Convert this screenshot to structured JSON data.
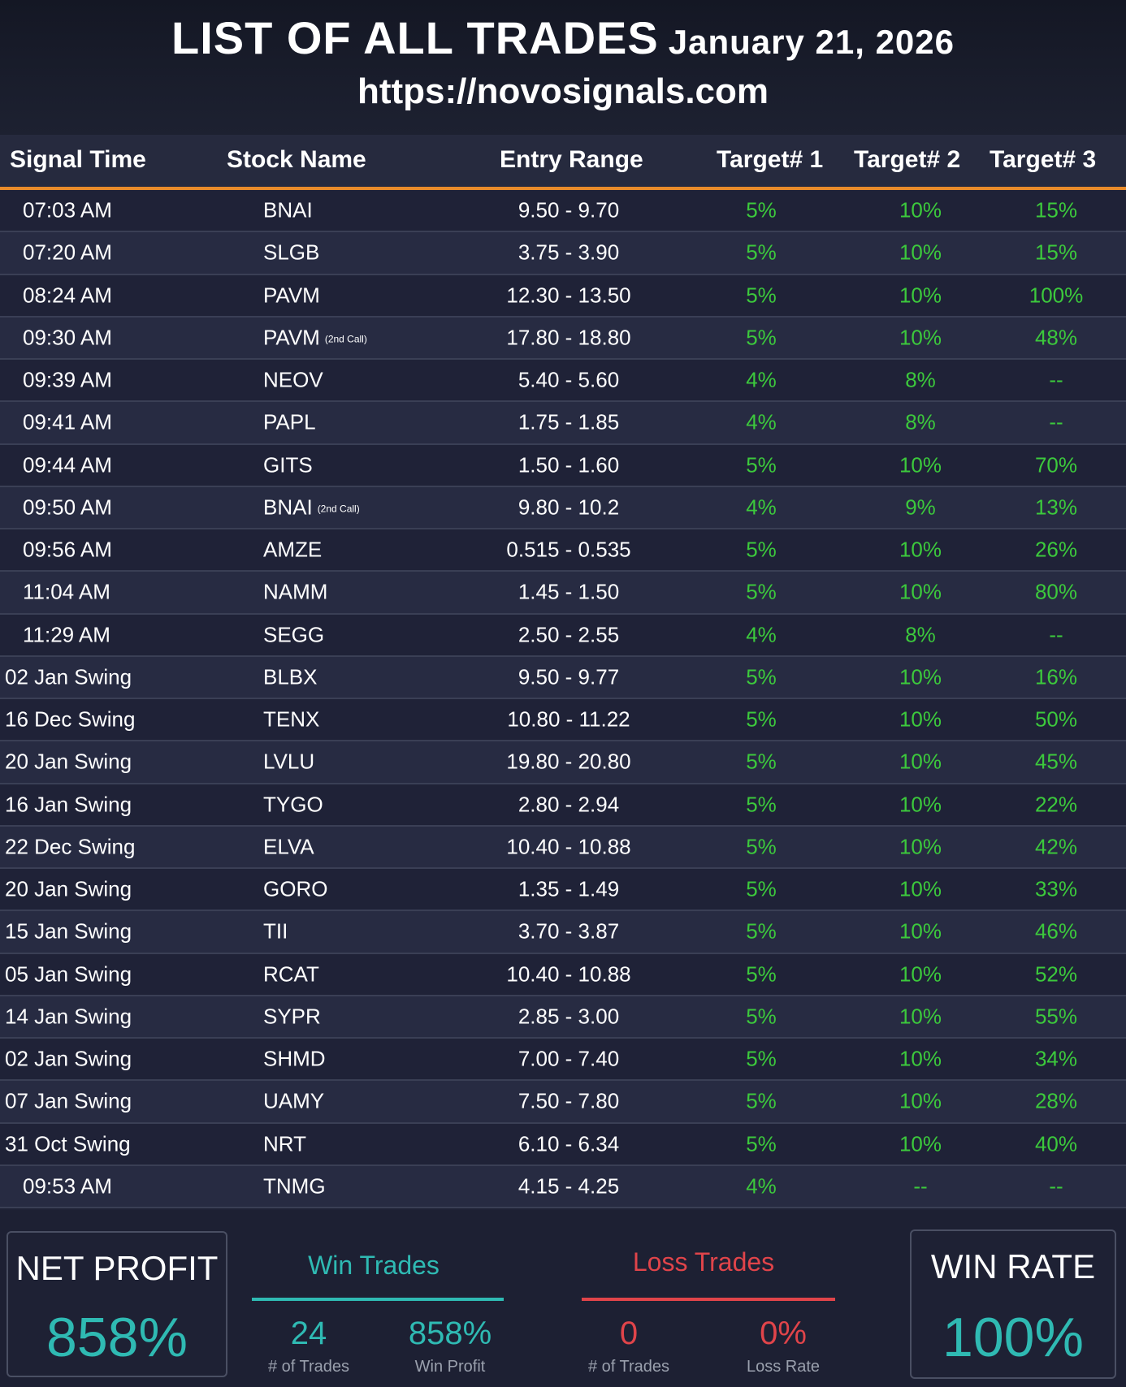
{
  "header": {
    "title": "LIST OF ALL TRADES",
    "date": "January 21, 2026",
    "url": "https://novosignals.com"
  },
  "columns": [
    "Signal Time",
    "Stock Name",
    "Entry Range",
    "Target# 1",
    "Target# 2",
    "Target# 3"
  ],
  "rows": [
    {
      "time": "07:03 AM",
      "name": "BNAI",
      "note": "",
      "entry": "9.50 - 9.70",
      "t1": "5%",
      "t2": "10%",
      "t3": "15%"
    },
    {
      "time": "07:20 AM",
      "name": "SLGB",
      "note": "",
      "entry": "3.75 - 3.90",
      "t1": "5%",
      "t2": "10%",
      "t3": "15%"
    },
    {
      "time": "08:24 AM",
      "name": "PAVM",
      "note": "",
      "entry": "12.30 - 13.50",
      "t1": "5%",
      "t2": "10%",
      "t3": "100%"
    },
    {
      "time": "09:30 AM",
      "name": "PAVM",
      "note": "(2nd Call)",
      "entry": "17.80 - 18.80",
      "t1": "5%",
      "t2": "10%",
      "t3": "48%"
    },
    {
      "time": "09:39 AM",
      "name": "NEOV",
      "note": "",
      "entry": "5.40 - 5.60",
      "t1": "4%",
      "t2": "8%",
      "t3": "--"
    },
    {
      "time": "09:41 AM",
      "name": "PAPL",
      "note": "",
      "entry": "1.75 - 1.85",
      "t1": "4%",
      "t2": "8%",
      "t3": "--"
    },
    {
      "time": "09:44 AM",
      "name": "GITS",
      "note": "",
      "entry": "1.50 - 1.60",
      "t1": "5%",
      "t2": "10%",
      "t3": "70%"
    },
    {
      "time": "09:50 AM",
      "name": "BNAI",
      "note": "(2nd Call)",
      "entry": "9.80 - 10.2",
      "t1": "4%",
      "t2": "9%",
      "t3": "13%"
    },
    {
      "time": "09:56 AM",
      "name": "AMZE",
      "note": "",
      "entry": "0.515 - 0.535",
      "t1": "5%",
      "t2": "10%",
      "t3": "26%"
    },
    {
      "time": "11:04 AM",
      "name": "NAMM",
      "note": "",
      "entry": "1.45 - 1.50",
      "t1": "5%",
      "t2": "10%",
      "t3": "80%"
    },
    {
      "time": "11:29 AM",
      "name": "SEGG",
      "note": "",
      "entry": "2.50 - 2.55",
      "t1": "4%",
      "t2": "8%",
      "t3": "--"
    },
    {
      "time": "02 Jan Swing",
      "name": "BLBX",
      "note": "",
      "entry": "9.50 - 9.77",
      "t1": "5%",
      "t2": "10%",
      "t3": "16%"
    },
    {
      "time": "16 Dec Swing",
      "name": "TENX",
      "note": "",
      "entry": "10.80 - 11.22",
      "t1": "5%",
      "t2": "10%",
      "t3": "50%"
    },
    {
      "time": "20 Jan Swing",
      "name": "LVLU",
      "note": "",
      "entry": "19.80 - 20.80",
      "t1": "5%",
      "t2": "10%",
      "t3": "45%"
    },
    {
      "time": "16 Jan Swing",
      "name": "TYGO",
      "note": "",
      "entry": "2.80 - 2.94",
      "t1": "5%",
      "t2": "10%",
      "t3": "22%"
    },
    {
      "time": "22 Dec Swing",
      "name": "ELVA",
      "note": "",
      "entry": "10.40 - 10.88",
      "t1": "5%",
      "t2": "10%",
      "t3": "42%"
    },
    {
      "time": "20 Jan Swing",
      "name": "GORO",
      "note": "",
      "entry": "1.35 - 1.49",
      "t1": "5%",
      "t2": "10%",
      "t3": "33%"
    },
    {
      "time": "15 Jan Swing",
      "name": "TII",
      "note": "",
      "entry": "3.70 - 3.87",
      "t1": "5%",
      "t2": "10%",
      "t3": "46%"
    },
    {
      "time": "05 Jan Swing",
      "name": "RCAT",
      "note": "",
      "entry": "10.40 - 10.88",
      "t1": "5%",
      "t2": "10%",
      "t3": "52%"
    },
    {
      "time": "14 Jan Swing",
      "name": "SYPR",
      "note": "",
      "entry": "2.85 - 3.00",
      "t1": "5%",
      "t2": "10%",
      "t3": "55%"
    },
    {
      "time": "02 Jan Swing",
      "name": "SHMD",
      "note": "",
      "entry": "7.00 - 7.40",
      "t1": "5%",
      "t2": "10%",
      "t3": "34%"
    },
    {
      "time": "07 Jan Swing",
      "name": "UAMY",
      "note": "",
      "entry": "7.50 - 7.80",
      "t1": "5%",
      "t2": "10%",
      "t3": "28%"
    },
    {
      "time": "31 Oct Swing",
      "name": "NRT",
      "note": "",
      "entry": "6.10 - 6.34",
      "t1": "5%",
      "t2": "10%",
      "t3": "40%"
    },
    {
      "time": "09:53 AM",
      "name": "TNMG",
      "note": "",
      "entry": "4.15 - 4.25",
      "t1": "4%",
      "t2": "--",
      "t3": "--"
    }
  ],
  "summary": {
    "net_profit_label": "NET PROFIT",
    "net_profit_value": "858%",
    "win_title": "Win Trades",
    "win_trades": "24",
    "win_trades_label": "# of Trades",
    "win_profit": "858%",
    "win_profit_label": "Win Profit",
    "loss_title": "Loss Trades",
    "loss_trades": "0",
    "loss_trades_label": "# of Trades",
    "loss_rate": "0%",
    "loss_rate_label": "Loss Rate",
    "win_rate_label": "WIN RATE",
    "win_rate_value": "100%"
  },
  "colors": {
    "accent_orange": "#e98b2a",
    "target_green": "#3cc93c",
    "teal": "#2fbab3",
    "loss_red": "#e0444a",
    "background": "#1f2236"
  }
}
